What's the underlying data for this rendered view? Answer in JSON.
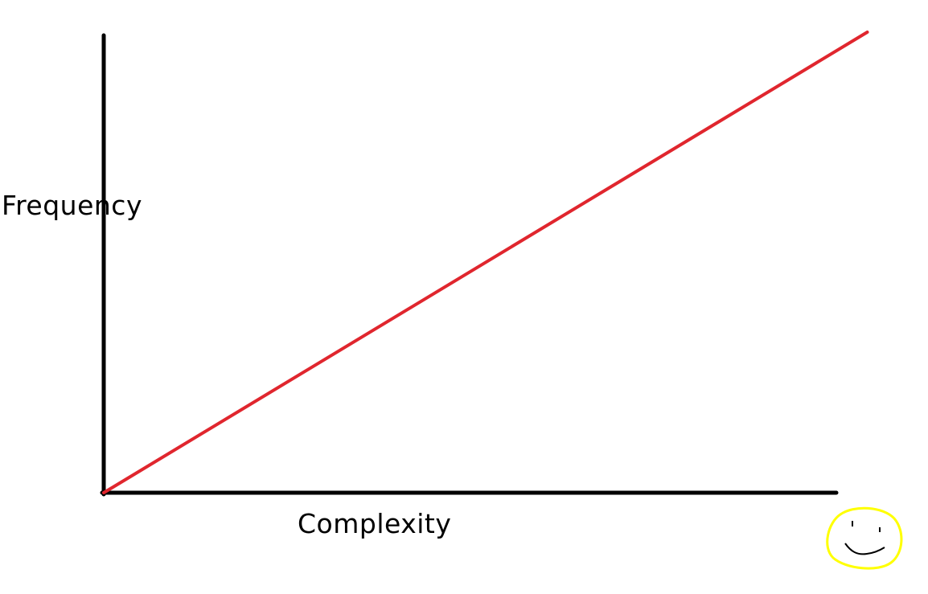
{
  "chart_data": {
    "type": "line",
    "title": "",
    "xlabel": "Complexity",
    "ylabel": "Frequency",
    "series": [
      {
        "x": [
          0,
          1.04
        ],
        "y": [
          0,
          1.0
        ]
      }
    ],
    "xlim": [
      0,
      1
    ],
    "ylim": [
      0,
      1
    ],
    "grid": false,
    "colors": {
      "line": "#e0262e",
      "axes": "#000000",
      "smiley_face": "#ffff00",
      "smiley_features": "#000000"
    }
  },
  "decorations": {
    "smiley_icon": "smiley-face-icon"
  }
}
